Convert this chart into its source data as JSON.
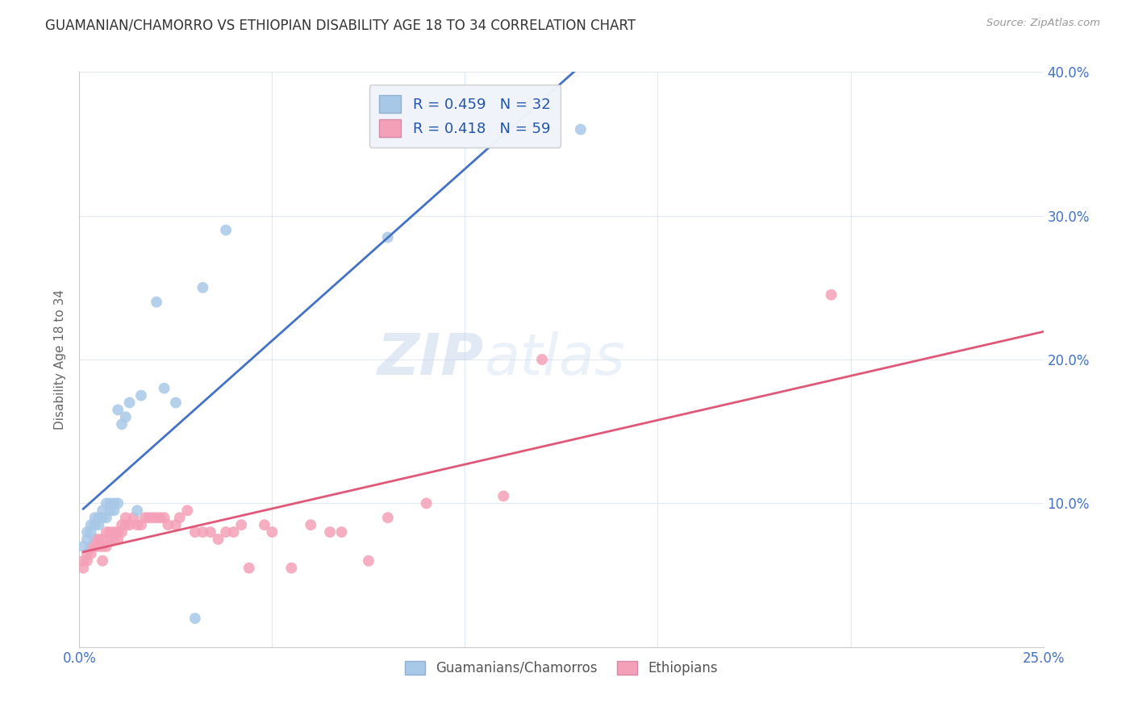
{
  "title": "GUAMANIAN/CHAMORRO VS ETHIOPIAN DISABILITY AGE 18 TO 34 CORRELATION CHART",
  "source": "Source: ZipAtlas.com",
  "ylabel": "Disability Age 18 to 34",
  "xlim": [
    0.0,
    0.25
  ],
  "ylim": [
    0.0,
    0.4
  ],
  "xticks": [
    0.0,
    0.05,
    0.1,
    0.15,
    0.2,
    0.25
  ],
  "yticks": [
    0.0,
    0.1,
    0.2,
    0.3,
    0.4
  ],
  "xticklabels": [
    "0.0%",
    "",
    "",
    "",
    "",
    "25.0%"
  ],
  "yticklabels_right": [
    "",
    "10.0%",
    "20.0%",
    "30.0%",
    "40.0%"
  ],
  "color_blue": "#a8c8e8",
  "color_pink": "#f4a0b8",
  "line_blue": "#4472c4",
  "line_pink": "#e05878",
  "line_dashed_color": "#b8cfe8",
  "watermark": "ZIPatlas",
  "guamanian_x": [
    0.001,
    0.002,
    0.002,
    0.003,
    0.003,
    0.004,
    0.004,
    0.005,
    0.005,
    0.006,
    0.006,
    0.007,
    0.007,
    0.008,
    0.008,
    0.009,
    0.009,
    0.01,
    0.01,
    0.011,
    0.012,
    0.013,
    0.015,
    0.016,
    0.02,
    0.022,
    0.025,
    0.03,
    0.032,
    0.038,
    0.08,
    0.13
  ],
  "guamanian_y": [
    0.07,
    0.075,
    0.08,
    0.08,
    0.085,
    0.085,
    0.09,
    0.085,
    0.09,
    0.09,
    0.095,
    0.09,
    0.1,
    0.095,
    0.1,
    0.095,
    0.1,
    0.1,
    0.165,
    0.155,
    0.16,
    0.17,
    0.095,
    0.175,
    0.24,
    0.18,
    0.17,
    0.02,
    0.25,
    0.29,
    0.285,
    0.36
  ],
  "ethiopian_x": [
    0.001,
    0.001,
    0.002,
    0.002,
    0.003,
    0.003,
    0.004,
    0.004,
    0.005,
    0.005,
    0.006,
    0.006,
    0.006,
    0.007,
    0.007,
    0.008,
    0.008,
    0.009,
    0.009,
    0.01,
    0.01,
    0.011,
    0.011,
    0.012,
    0.012,
    0.013,
    0.014,
    0.015,
    0.016,
    0.017,
    0.018,
    0.019,
    0.02,
    0.021,
    0.022,
    0.023,
    0.025,
    0.026,
    0.028,
    0.03,
    0.032,
    0.034,
    0.036,
    0.038,
    0.04,
    0.042,
    0.044,
    0.048,
    0.05,
    0.055,
    0.06,
    0.065,
    0.068,
    0.075,
    0.08,
    0.09,
    0.11,
    0.12,
    0.195
  ],
  "ethiopian_y": [
    0.055,
    0.06,
    0.06,
    0.065,
    0.065,
    0.07,
    0.07,
    0.075,
    0.07,
    0.075,
    0.06,
    0.07,
    0.075,
    0.07,
    0.08,
    0.075,
    0.08,
    0.075,
    0.08,
    0.075,
    0.08,
    0.08,
    0.085,
    0.085,
    0.09,
    0.085,
    0.09,
    0.085,
    0.085,
    0.09,
    0.09,
    0.09,
    0.09,
    0.09,
    0.09,
    0.085,
    0.085,
    0.09,
    0.095,
    0.08,
    0.08,
    0.08,
    0.075,
    0.08,
    0.08,
    0.085,
    0.055,
    0.085,
    0.08,
    0.055,
    0.085,
    0.08,
    0.08,
    0.06,
    0.09,
    0.1,
    0.105,
    0.2,
    0.245
  ],
  "legend_line1": "R = 0.459   N = 32",
  "legend_line2": "R = 0.418   N = 59",
  "bottom_label1": "Guamanians/Chamorros",
  "bottom_label2": "Ethiopians"
}
